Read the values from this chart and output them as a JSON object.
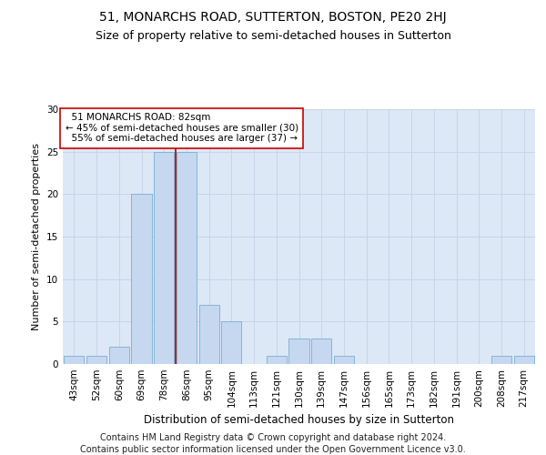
{
  "title": "51, MONARCHS ROAD, SUTTERTON, BOSTON, PE20 2HJ",
  "subtitle": "Size of property relative to semi-detached houses in Sutterton",
  "xlabel": "Distribution of semi-detached houses by size in Sutterton",
  "ylabel": "Number of semi-detached properties",
  "categories": [
    "43sqm",
    "52sqm",
    "60sqm",
    "69sqm",
    "78sqm",
    "86sqm",
    "95sqm",
    "104sqm",
    "113sqm",
    "121sqm",
    "130sqm",
    "139sqm",
    "147sqm",
    "156sqm",
    "165sqm",
    "173sqm",
    "182sqm",
    "191sqm",
    "200sqm",
    "208sqm",
    "217sqm"
  ],
  "values": [
    1,
    1,
    2,
    20,
    25,
    25,
    7,
    5,
    0,
    1,
    3,
    3,
    1,
    0,
    0,
    0,
    0,
    0,
    0,
    1,
    1
  ],
  "bar_color": "#c5d8f0",
  "bar_edge_color": "#7aadd4",
  "highlight_line_color": "#aa0000",
  "annotation_box_color": "#cc0000",
  "ylim": [
    0,
    30
  ],
  "yticks": [
    0,
    5,
    10,
    15,
    20,
    25,
    30
  ],
  "grid_color": "#c8d4e8",
  "background_color": "#dce8f5",
  "title_fontsize": 10,
  "subtitle_fontsize": 9,
  "xlabel_fontsize": 8.5,
  "ylabel_fontsize": 8,
  "tick_fontsize": 7.5,
  "annotation_fontsize": 7.5,
  "footer_fontsize": 7
}
